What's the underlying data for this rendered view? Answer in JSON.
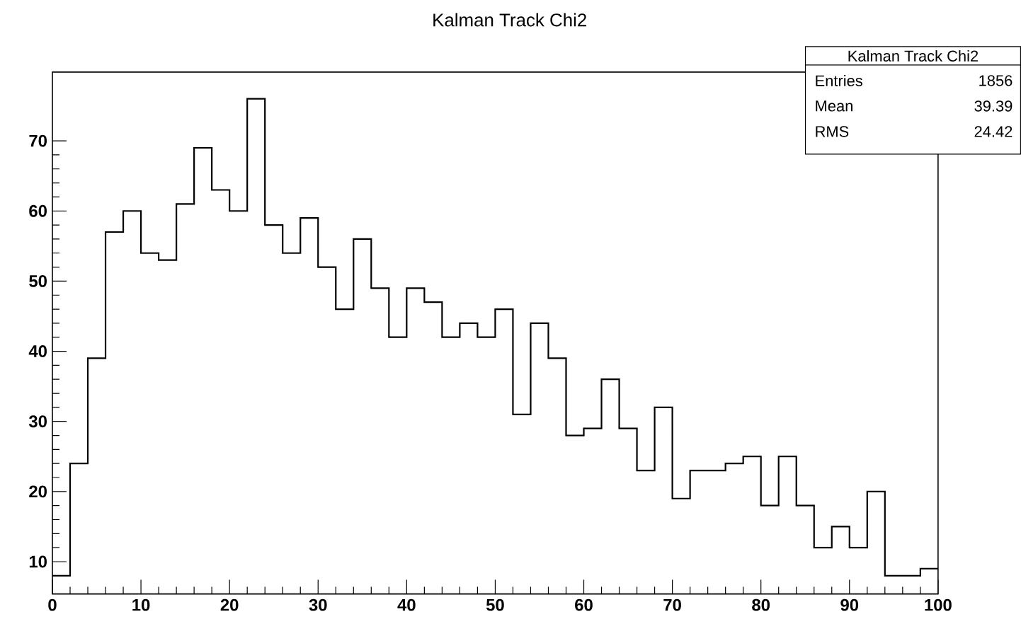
{
  "chart_data": {
    "type": "histogram",
    "title": "Kalman Track Chi2",
    "bins": [
      0,
      2,
      4,
      6,
      8,
      10,
      12,
      14,
      16,
      18,
      20,
      22,
      24,
      26,
      28,
      30,
      32,
      34,
      36,
      38,
      40,
      42,
      44,
      46,
      48,
      50,
      52,
      54,
      56,
      58,
      60,
      62,
      64,
      66,
      68,
      70,
      72,
      74,
      76,
      78,
      80,
      82,
      84,
      86,
      88,
      90,
      92,
      94,
      96,
      98,
      100
    ],
    "values": [
      8,
      24,
      39,
      57,
      60,
      54,
      53,
      61,
      69,
      63,
      60,
      76,
      58,
      54,
      59,
      52,
      46,
      56,
      49,
      42,
      49,
      47,
      42,
      44,
      42,
      46,
      31,
      44,
      39,
      28,
      29,
      36,
      29,
      23,
      32,
      19,
      23,
      23,
      24,
      25,
      18,
      25,
      18,
      12,
      15,
      12,
      20,
      8,
      8,
      9
    ],
    "color": "#000000",
    "xlim": [
      0,
      100
    ],
    "xticks": [
      0,
      10,
      20,
      30,
      40,
      50,
      60,
      70,
      80,
      90,
      100
    ],
    "ylim": [
      5.4,
      79.8
    ],
    "yticks": [
      10,
      20,
      30,
      40,
      50,
      60,
      70
    ],
    "grid": false,
    "annotations": [
      "Kalman Track Chi2",
      "Entries",
      "1856",
      "Mean",
      "39.39",
      "RMS",
      "24.42"
    ]
  }
}
